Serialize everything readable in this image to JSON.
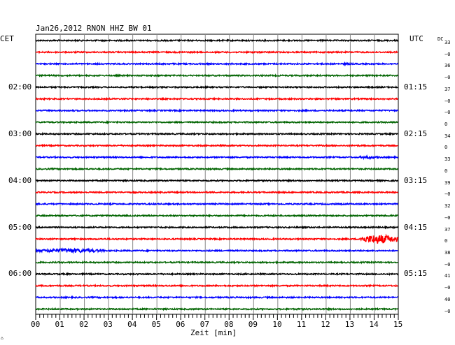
{
  "header": {
    "title": "Jan26,2012   RNON HHZ BW 01",
    "left_tz": "CET",
    "right_tz": "UTC",
    "dc_label": "DC"
  },
  "footer": {
    "xlabel": "Zeit [min]",
    "corner_mark": "⌂"
  },
  "chart_data": {
    "type": "line",
    "title": "Jan26,2012   RNON HHZ BW 01",
    "xlabel": "Zeit [min]",
    "ylabel": "",
    "xlim": [
      0,
      15
    ],
    "x_ticks": [
      "00",
      "01",
      "02",
      "03",
      "04",
      "05",
      "06",
      "07",
      "08",
      "09",
      "10",
      "11",
      "12",
      "13",
      "14",
      "15"
    ],
    "grid": true,
    "trace_colors": [
      "#000000",
      "#ff0000",
      "#0000ff",
      "#006400"
    ],
    "left_time_labels": [
      {
        "row": 4,
        "text": "02:00"
      },
      {
        "row": 8,
        "text": "03:00"
      },
      {
        "row": 12,
        "text": "04:00"
      },
      {
        "row": 16,
        "text": "05:00"
      },
      {
        "row": 20,
        "text": "06:00"
      }
    ],
    "right_time_labels": [
      {
        "row": 4,
        "text": "01:15"
      },
      {
        "row": 8,
        "text": "02:15"
      },
      {
        "row": 12,
        "text": "03:15"
      },
      {
        "row": 16,
        "text": "04:15"
      },
      {
        "row": 20,
        "text": "05:15"
      }
    ],
    "dc_values": [
      "33",
      "−0",
      "36",
      "−0",
      "37",
      "−0",
      "−0",
      "0",
      "34",
      "0",
      "33",
      "0",
      "39",
      "−0",
      "32",
      "−0",
      "37",
      "0",
      "38",
      "−0",
      "41",
      "−0",
      "40",
      "−0"
    ],
    "rows": 24,
    "events": [
      {
        "row": 10,
        "x_start": 13.3,
        "x_end": 14.3,
        "amplitude": 2.2
      },
      {
        "row": 17,
        "x_start": 13.4,
        "x_end": 15.0,
        "amplitude": 7.0
      },
      {
        "row": 18,
        "x_start": 0.0,
        "x_end": 2.9,
        "amplitude": 3.2
      },
      {
        "row": 2,
        "x_start": 12.6,
        "x_end": 13.2,
        "amplitude": 1.6
      }
    ]
  }
}
